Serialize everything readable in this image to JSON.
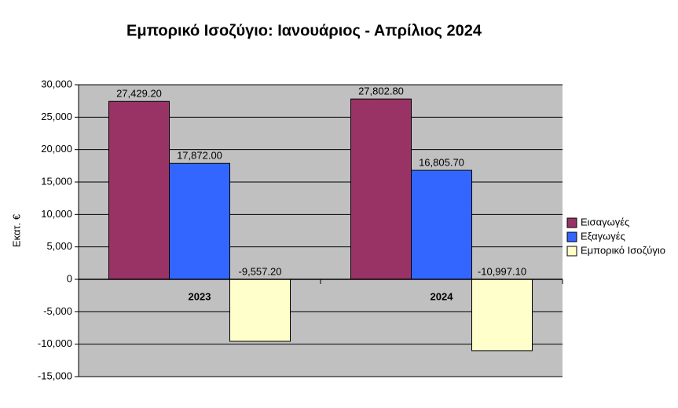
{
  "chart_data": {
    "type": "bar",
    "title": "Εμπορικό Ισοζύγιο: Ιανουάριος - Απρίλιος 2024",
    "y_label": "Εκατ. €",
    "categories": [
      "2023",
      "2024"
    ],
    "series": [
      {
        "name": "Εισαγωγές",
        "color": "#993366",
        "values": [
          27429.2,
          27802.8
        ],
        "value_labels": [
          "27,429.20",
          "27,802.80"
        ]
      },
      {
        "name": "Εξαγωγές",
        "color": "#3366ff",
        "values": [
          17872.0,
          16805.7
        ],
        "value_labels": [
          "17,872.00",
          "16,805.70"
        ]
      },
      {
        "name": "Εμπορικό Ισοζύγιο",
        "color": "#ffffcc",
        "values": [
          -9557.2,
          -10997.1
        ],
        "value_labels": [
          "-9,557.20",
          "-10,997.10"
        ]
      }
    ],
    "ylim": [
      -15000,
      30000
    ],
    "yticks": [
      {
        "value": -15000,
        "label": "-15,000"
      },
      {
        "value": -10000,
        "label": "-10,000"
      },
      {
        "value": -5000,
        "label": "-5,000"
      },
      0,
      {
        "value": 5000,
        "label": "5,000"
      },
      {
        "value": 10000,
        "label": "10,000"
      },
      {
        "value": 15000,
        "label": "15,000"
      },
      {
        "value": 20000,
        "label": "20,000"
      },
      {
        "value": 25000,
        "label": "25,000"
      },
      {
        "value": 30000,
        "label": "30,000"
      }
    ],
    "grid": true,
    "legend": "right",
    "background": "#c0c0c0"
  }
}
